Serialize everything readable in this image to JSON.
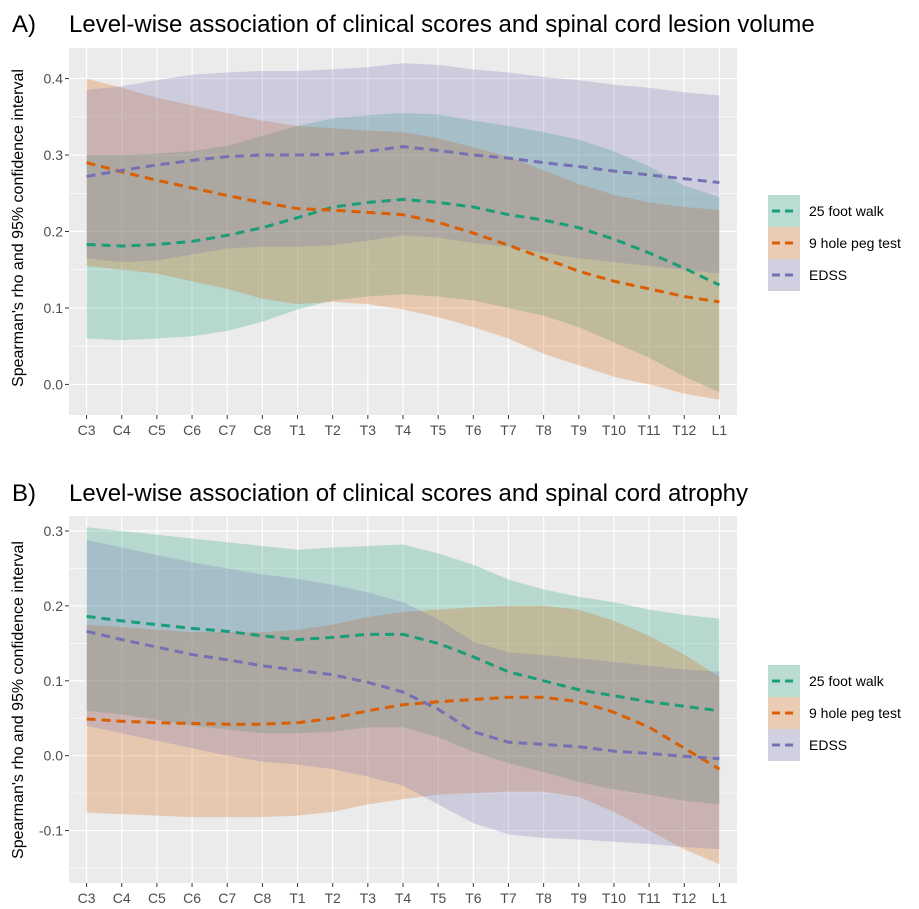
{
  "chart_data": [
    {
      "panel_letter": "A)",
      "type": "line",
      "title": "Level-wise association of clinical scores and spinal cord lesion volume",
      "xlabel": "",
      "ylabel": "Spearman's rho and 95% confidence interval",
      "categories": [
        "C3",
        "C4",
        "C5",
        "C6",
        "C7",
        "C8",
        "T1",
        "T2",
        "T3",
        "T4",
        "T5",
        "T6",
        "T7",
        "T8",
        "T9",
        "T10",
        "T11",
        "T12",
        "L1"
      ],
      "ylim": [
        -0.04,
        0.44
      ],
      "yticks": [
        "0.0",
        "0.1",
        "0.2",
        "0.3",
        "0.4"
      ],
      "grid": true,
      "legend_position": "right",
      "series": [
        {
          "name": "25 foot walk",
          "color": "#1b9e77",
          "values": [
            0.183,
            0.181,
            0.183,
            0.187,
            0.195,
            0.205,
            0.218,
            0.232,
            0.238,
            0.242,
            0.238,
            0.232,
            0.222,
            0.215,
            0.205,
            0.19,
            0.172,
            0.152,
            0.13
          ],
          "lower": [
            0.06,
            0.058,
            0.06,
            0.063,
            0.07,
            0.082,
            0.098,
            0.11,
            0.115,
            0.118,
            0.115,
            0.11,
            0.1,
            0.09,
            0.075,
            0.055,
            0.035,
            0.01,
            -0.01
          ],
          "upper": [
            0.3,
            0.3,
            0.302,
            0.305,
            0.312,
            0.325,
            0.338,
            0.348,
            0.352,
            0.355,
            0.353,
            0.345,
            0.338,
            0.33,
            0.32,
            0.305,
            0.285,
            0.26,
            0.245
          ]
        },
        {
          "name": "9 hole peg test",
          "color": "#d95f02",
          "values": [
            0.29,
            0.278,
            0.267,
            0.257,
            0.247,
            0.238,
            0.23,
            0.228,
            0.225,
            0.222,
            0.212,
            0.198,
            0.182,
            0.165,
            0.148,
            0.135,
            0.125,
            0.115,
            0.108
          ],
          "lower": [
            0.155,
            0.15,
            0.145,
            0.135,
            0.125,
            0.112,
            0.105,
            0.108,
            0.105,
            0.098,
            0.088,
            0.075,
            0.06,
            0.04,
            0.025,
            0.01,
            0.0,
            -0.012,
            -0.02
          ],
          "upper": [
            0.4,
            0.388,
            0.375,
            0.365,
            0.355,
            0.345,
            0.338,
            0.335,
            0.332,
            0.33,
            0.322,
            0.31,
            0.298,
            0.28,
            0.262,
            0.248,
            0.238,
            0.232,
            0.228
          ]
        },
        {
          "name": "EDSS",
          "color": "#7570b3",
          "values": [
            0.272,
            0.28,
            0.287,
            0.293,
            0.298,
            0.3,
            0.3,
            0.301,
            0.305,
            0.311,
            0.306,
            0.3,
            0.296,
            0.29,
            0.285,
            0.279,
            0.274,
            0.269,
            0.264
          ],
          "lower": [
            0.165,
            0.16,
            0.162,
            0.17,
            0.178,
            0.18,
            0.18,
            0.182,
            0.188,
            0.195,
            0.192,
            0.185,
            0.18,
            0.172,
            0.165,
            0.16,
            0.155,
            0.15,
            0.145
          ],
          "upper": [
            0.385,
            0.39,
            0.398,
            0.405,
            0.408,
            0.41,
            0.41,
            0.412,
            0.415,
            0.42,
            0.418,
            0.412,
            0.408,
            0.402,
            0.398,
            0.392,
            0.388,
            0.382,
            0.378
          ]
        }
      ]
    },
    {
      "panel_letter": "B)",
      "type": "line",
      "title": "Level-wise association of clinical scores and spinal cord atrophy",
      "xlabel": "",
      "ylabel": "Spearman's rho and 95% confidence interval",
      "categories": [
        "C3",
        "C4",
        "C5",
        "C6",
        "C7",
        "C8",
        "T1",
        "T2",
        "T3",
        "T4",
        "T5",
        "T6",
        "T7",
        "T8",
        "T9",
        "T10",
        "T11",
        "T12",
        "L1"
      ],
      "ylim": [
        -0.17,
        0.32
      ],
      "yticks": [
        "-0.1",
        "0.0",
        "0.1",
        "0.2",
        "0.3"
      ],
      "grid": true,
      "legend_position": "right",
      "series": [
        {
          "name": "25 foot walk",
          "color": "#1b9e77",
          "values": [
            0.186,
            0.18,
            0.175,
            0.17,
            0.166,
            0.16,
            0.155,
            0.158,
            0.162,
            0.162,
            0.15,
            0.132,
            0.112,
            0.1,
            0.088,
            0.08,
            0.072,
            0.066,
            0.06
          ],
          "lower": [
            0.06,
            0.055,
            0.048,
            0.04,
            0.035,
            0.03,
            0.03,
            0.032,
            0.038,
            0.038,
            0.025,
            0.005,
            -0.01,
            -0.022,
            -0.035,
            -0.045,
            -0.052,
            -0.06,
            -0.065
          ],
          "upper": [
            0.305,
            0.3,
            0.295,
            0.29,
            0.285,
            0.28,
            0.275,
            0.278,
            0.28,
            0.282,
            0.27,
            0.255,
            0.235,
            0.222,
            0.212,
            0.205,
            0.195,
            0.188,
            0.183
          ]
        },
        {
          "name": "9 hole peg test",
          "color": "#d95f02",
          "values": [
            0.049,
            0.046,
            0.044,
            0.043,
            0.042,
            0.042,
            0.044,
            0.05,
            0.06,
            0.068,
            0.072,
            0.075,
            0.078,
            0.078,
            0.072,
            0.058,
            0.038,
            0.01,
            -0.018
          ],
          "lower": [
            -0.076,
            -0.078,
            -0.08,
            -0.082,
            -0.082,
            -0.082,
            -0.08,
            -0.075,
            -0.065,
            -0.058,
            -0.052,
            -0.05,
            -0.048,
            -0.048,
            -0.055,
            -0.075,
            -0.1,
            -0.125,
            -0.145
          ],
          "upper": [
            0.175,
            0.172,
            0.168,
            0.165,
            0.165,
            0.165,
            0.168,
            0.175,
            0.185,
            0.192,
            0.195,
            0.198,
            0.2,
            0.2,
            0.195,
            0.18,
            0.16,
            0.135,
            0.105
          ]
        },
        {
          "name": "EDSS",
          "color": "#7570b3",
          "values": [
            0.166,
            0.155,
            0.145,
            0.135,
            0.128,
            0.12,
            0.114,
            0.108,
            0.098,
            0.085,
            0.062,
            0.032,
            0.018,
            0.015,
            0.012,
            0.006,
            0.003,
            -0.001,
            -0.004
          ],
          "lower": [
            0.04,
            0.03,
            0.02,
            0.01,
            0.0,
            -0.008,
            -0.012,
            -0.018,
            -0.028,
            -0.04,
            -0.065,
            -0.09,
            -0.105,
            -0.11,
            -0.112,
            -0.115,
            -0.118,
            -0.122,
            -0.125
          ],
          "upper": [
            0.288,
            0.278,
            0.268,
            0.258,
            0.25,
            0.242,
            0.236,
            0.228,
            0.218,
            0.205,
            0.182,
            0.152,
            0.138,
            0.134,
            0.13,
            0.125,
            0.12,
            0.115,
            0.112
          ]
        }
      ]
    }
  ]
}
